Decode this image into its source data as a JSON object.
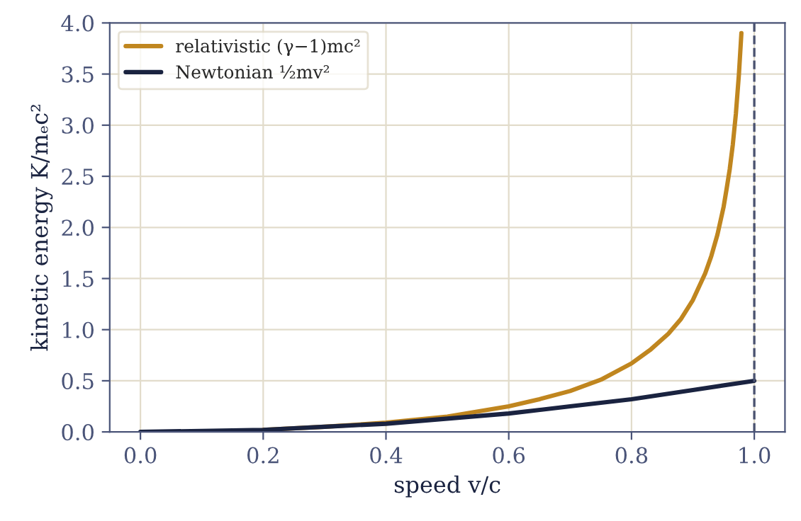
{
  "chart_data": {
    "type": "line",
    "xlabel": "speed v/c",
    "ylabel": "kinetic energy K/mₑc²",
    "series": [
      {
        "name": "relativistic (γ−1)mc²",
        "color": "#c0861f",
        "x": [
          0.2,
          0.3,
          0.4,
          0.5,
          0.6,
          0.65,
          0.7,
          0.75,
          0.8,
          0.83,
          0.86,
          0.88,
          0.9,
          0.92,
          0.93,
          0.94,
          0.95,
          0.955,
          0.96,
          0.965,
          0.97,
          0.975,
          0.979
        ],
        "values": [
          0.02,
          0.05,
          0.09,
          0.15,
          0.25,
          0.32,
          0.4,
          0.51,
          0.67,
          0.8,
          0.96,
          1.1,
          1.29,
          1.55,
          1.72,
          1.93,
          2.2,
          2.38,
          2.57,
          2.81,
          3.11,
          3.5,
          3.9
        ]
      },
      {
        "name": "Newtonian ½mv²",
        "color": "#1a2340",
        "x": [
          0,
          0.1,
          0.2,
          0.3,
          0.4,
          0.5,
          0.6,
          0.7,
          0.8,
          0.9,
          1.0
        ],
        "values": [
          0,
          0.01,
          0.02,
          0.05,
          0.08,
          0.13,
          0.18,
          0.25,
          0.32,
          0.41,
          0.5
        ]
      }
    ],
    "ref_lines": [
      {
        "axis": "x",
        "value": 1.0,
        "color": "#4a5270",
        "line_style": "dashed"
      }
    ],
    "xlim": [
      -0.05,
      1.05
    ],
    "ylim": [
      0,
      4
    ],
    "xticks": [
      {
        "value": 0,
        "label": "0.0"
      },
      0.2,
      0.4,
      0.6,
      0.8,
      {
        "value": 1,
        "label": "1.0"
      }
    ],
    "yticks": [
      {
        "value": 0,
        "label": "0.0"
      },
      0.5,
      {
        "value": 1,
        "label": "1.0"
      },
      1.5,
      {
        "value": 2,
        "label": "2.0"
      },
      2.5,
      {
        "value": 3,
        "label": "3.0"
      },
      3.5,
      {
        "value": 4,
        "label": "4.0"
      }
    ],
    "grid": true,
    "legend": "top left"
  }
}
